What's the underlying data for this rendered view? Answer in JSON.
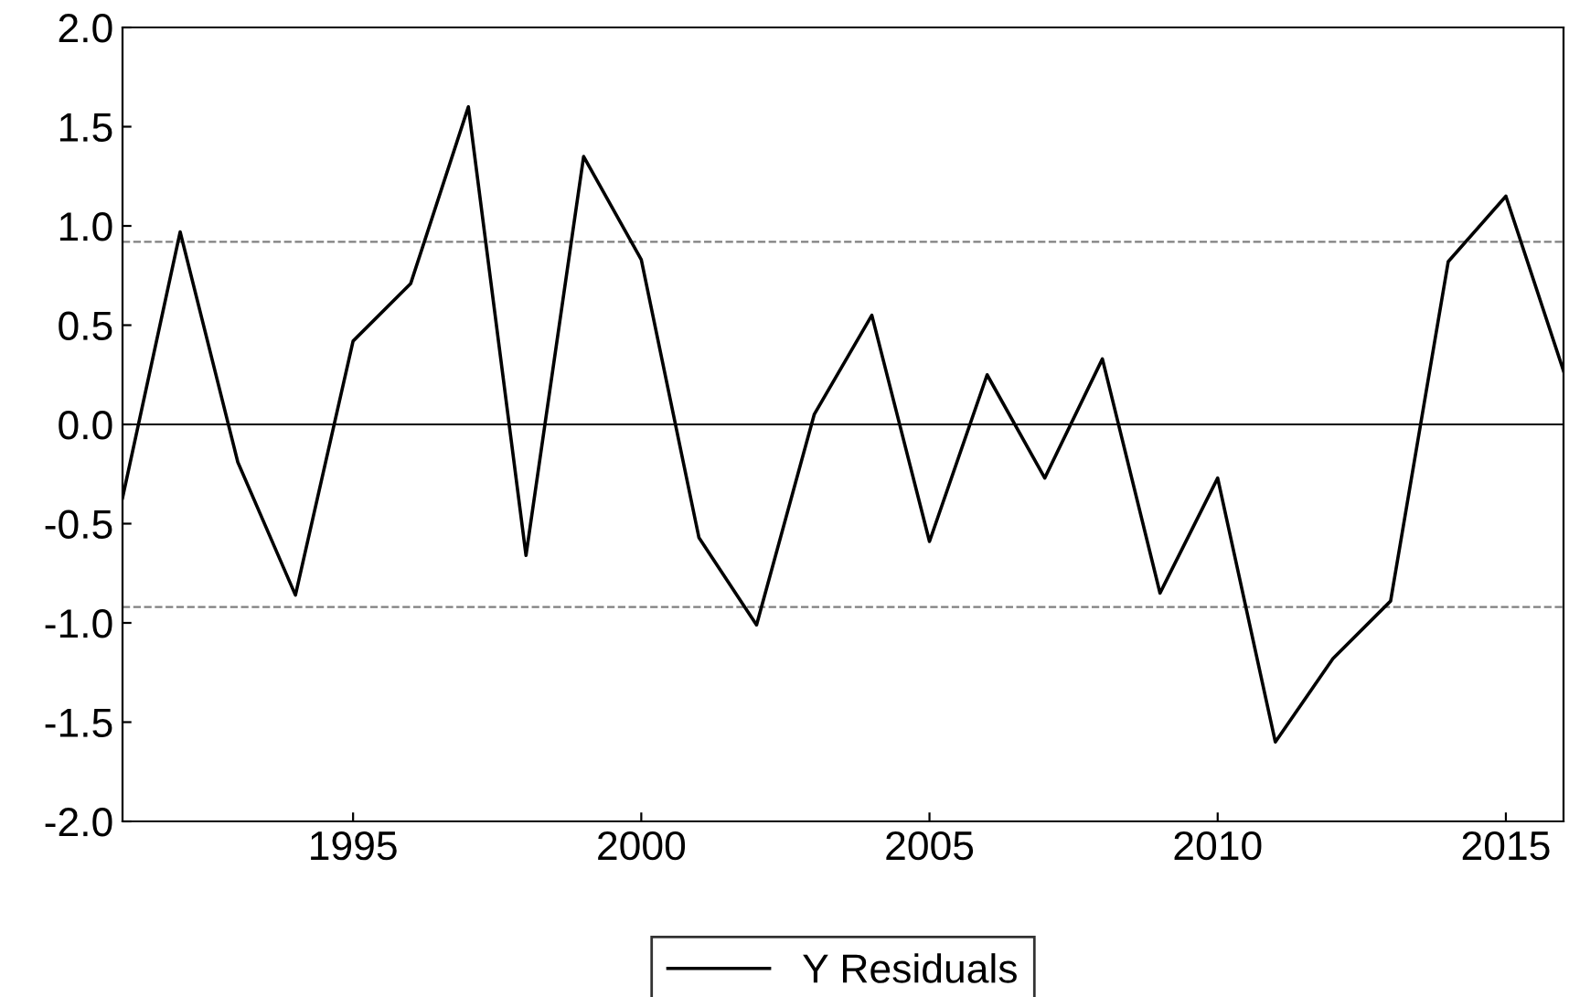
{
  "chart_data": {
    "type": "line",
    "x": [
      1991,
      1992,
      1993,
      1994,
      1995,
      1996,
      1997,
      1998,
      1999,
      2000,
      2001,
      2002,
      2003,
      2004,
      2005,
      2006,
      2007,
      2008,
      2009,
      2010,
      2011,
      2012,
      2013,
      2014,
      2015,
      2016
    ],
    "series": [
      {
        "name": "Y Residuals",
        "color": "#000000",
        "values": [
          -0.37,
          0.97,
          -0.19,
          -0.86,
          0.42,
          0.71,
          1.6,
          -0.66,
          1.35,
          0.83,
          -0.57,
          -1.01,
          0.05,
          0.55,
          -0.59,
          0.25,
          -0.27,
          0.33,
          -0.85,
          -0.27,
          -1.6,
          -1.18,
          -0.89,
          0.82,
          1.15,
          0.27
        ]
      }
    ],
    "xlim": [
      1991,
      2016
    ],
    "xticks": [
      1995,
      2000,
      2005,
      2010,
      2015
    ],
    "ylim": [
      -2.0,
      2.0
    ],
    "yticks": [
      {
        "value": -2.0,
        "label": "-2.0"
      },
      {
        "value": -1.5,
        "label": "-1.5"
      },
      {
        "value": -1.0,
        "label": "-1.0"
      },
      {
        "value": -0.5,
        "label": "-0.5"
      },
      {
        "value": 0.0,
        "label": "0.0"
      },
      {
        "value": 0.5,
        "label": "0.5"
      },
      {
        "value": 1.0,
        "label": "1.0"
      },
      {
        "value": 1.5,
        "label": "1.5"
      },
      {
        "value": 2.0,
        "label": "2.0"
      }
    ],
    "ref_lines": [
      {
        "axis": "y",
        "value": 0.0,
        "color": "#000000",
        "line_style": "solid"
      },
      {
        "axis": "y",
        "value": 0.92,
        "color": "#808080",
        "line_style": "dashed"
      },
      {
        "axis": "y",
        "value": -0.92,
        "color": "#808080",
        "line_style": "dashed"
      }
    ],
    "legend": "bottom",
    "grid": false,
    "marker": "none",
    "line_style": "solid"
  }
}
